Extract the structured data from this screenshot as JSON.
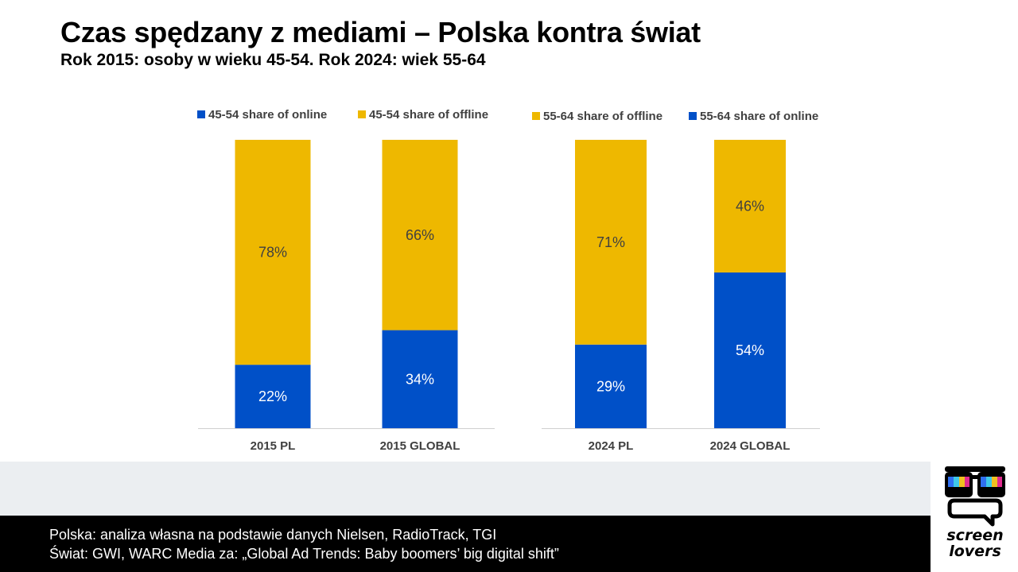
{
  "header": {
    "title": "Czas spędzany z mediami – Polska kontra świat",
    "subtitle": "Rok 2015: osoby w wieku 45-54. Rok 2024: wiek 55-64"
  },
  "colors": {
    "online": "#0050c8",
    "offline": "#eeb800",
    "axis": "#d0d0d0"
  },
  "chart_data": [
    {
      "type": "bar",
      "stacked": true,
      "categories": [
        "2015 PL",
        "2015 GLOBAL"
      ],
      "legend": [
        "45-54 share of online",
        "45-54 share of offline"
      ],
      "series": [
        {
          "name": "45-54 share of online",
          "color": "#0050c8",
          "values": [
            22,
            34
          ],
          "labels": [
            "22%",
            "34%"
          ]
        },
        {
          "name": "45-54 share of offline",
          "color": "#eeb800",
          "values": [
            78,
            66
          ],
          "labels": [
            "78%",
            "66%"
          ]
        }
      ],
      "ylim": [
        0,
        100
      ],
      "grid": false
    },
    {
      "type": "bar",
      "stacked": true,
      "categories": [
        "2024 PL",
        "2024 GLOBAL"
      ],
      "legend": [
        "55-64 share of offline",
        "55-64 share of online"
      ],
      "series": [
        {
          "name": "55-64 share of online",
          "color": "#0050c8",
          "values": [
            29,
            54
          ],
          "labels": [
            "29%",
            "54%"
          ]
        },
        {
          "name": "55-64 share of offline",
          "color": "#eeb800",
          "values": [
            71,
            46
          ],
          "labels": [
            "71%",
            "46%"
          ]
        }
      ],
      "ylim": [
        0,
        100
      ],
      "grid": false
    }
  ],
  "footer": {
    "line1": "Polska: analiza własna na podstawie danych Nielsen, RadioTrack, TGI",
    "line2": "Świat: GWI, WARC Media za: „Global Ad Trends: Baby boomers’ big digital shift”"
  },
  "logo": {
    "line1": "screen",
    "line2": "lovers"
  }
}
